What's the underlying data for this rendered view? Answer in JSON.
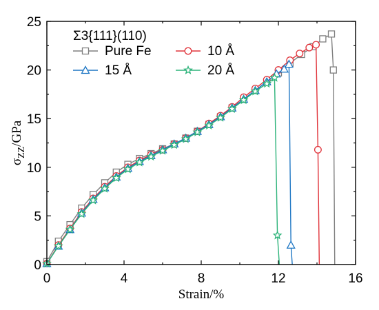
{
  "chart_data": {
    "type": "line",
    "title": "",
    "xlabel": "Strain/%",
    "ylabel_main": "σ",
    "ylabel_sub": "ZZ",
    "ylabel_tail": "/GPa",
    "xlim": [
      0,
      16
    ],
    "ylim": [
      0,
      25
    ],
    "xticks": [
      0,
      4,
      8,
      12,
      16
    ],
    "yticks": [
      0,
      5,
      10,
      15,
      20,
      25
    ],
    "xtick_labels": [
      "0",
      "4",
      "8",
      "12",
      "16"
    ],
    "ytick_labels": [
      "0",
      "5",
      "10",
      "15",
      "20",
      "25"
    ],
    "grid": false,
    "legend": {
      "placement": "top-left",
      "title": "Σ3{111}(110)"
    },
    "series": [
      {
        "name": "Pure Fe",
        "color": "#7f7f7f",
        "marker": "square",
        "x": [
          0,
          0.6,
          1.2,
          1.8,
          2.4,
          3.0,
          3.6,
          4.2,
          4.8,
          5.4,
          6.0,
          6.6,
          7.2,
          7.8,
          8.4,
          9.0,
          9.6,
          10.2,
          10.8,
          11.4,
          12.0,
          12.6,
          13.2,
          13.8,
          14.3,
          14.75,
          14.85,
          14.92
        ],
        "y": [
          0.3,
          2.4,
          4.1,
          5.8,
          7.2,
          8.4,
          9.5,
          10.3,
          10.9,
          11.4,
          11.9,
          12.4,
          13.0,
          13.7,
          14.4,
          15.2,
          16.1,
          17.0,
          17.9,
          18.8,
          19.7,
          20.7,
          21.6,
          22.4,
          23.2,
          23.7,
          20.0,
          0
        ]
      },
      {
        "name": "10 Å",
        "color": "#e0333a",
        "marker": "circle",
        "x": [
          0,
          0.6,
          1.2,
          1.8,
          2.4,
          3.0,
          3.6,
          4.2,
          4.8,
          5.4,
          6.0,
          6.6,
          7.2,
          7.8,
          8.4,
          9.0,
          9.6,
          10.2,
          10.8,
          11.4,
          12.0,
          12.6,
          13.1,
          13.6,
          13.95,
          14.05,
          14.12
        ],
        "y": [
          0.1,
          2.0,
          3.7,
          5.4,
          6.8,
          8.0,
          9.1,
          10.0,
          10.7,
          11.3,
          11.8,
          12.4,
          13.0,
          13.7,
          14.5,
          15.3,
          16.2,
          17.2,
          18.1,
          19.0,
          20.0,
          21.0,
          21.7,
          22.3,
          22.6,
          11.8,
          0
        ]
      },
      {
        "name": "15 Å",
        "color": "#1f77c4",
        "marker": "triangle",
        "x": [
          0,
          0.6,
          1.2,
          1.8,
          2.4,
          3.0,
          3.6,
          4.2,
          4.8,
          5.4,
          6.0,
          6.6,
          7.2,
          7.8,
          8.4,
          9.0,
          9.6,
          10.2,
          10.8,
          11.4,
          11.9,
          12.3,
          12.55,
          12.65,
          12.72
        ],
        "y": [
          0.1,
          1.9,
          3.6,
          5.3,
          6.7,
          7.9,
          9.0,
          9.9,
          10.6,
          11.2,
          11.8,
          12.4,
          13.0,
          13.7,
          14.4,
          15.2,
          16.1,
          17.0,
          17.9,
          18.8,
          19.6,
          20.1,
          20.6,
          2.0,
          0
        ]
      },
      {
        "name": "20 Å",
        "color": "#2db37a",
        "marker": "star",
        "x": [
          0,
          0.6,
          1.2,
          1.8,
          2.4,
          3.0,
          3.6,
          4.2,
          4.8,
          5.4,
          6.0,
          6.6,
          7.2,
          7.8,
          8.4,
          9.0,
          9.6,
          10.2,
          10.8,
          11.4,
          11.8,
          11.95,
          12.05
        ],
        "y": [
          0.1,
          1.9,
          3.6,
          5.2,
          6.6,
          7.8,
          8.9,
          9.8,
          10.5,
          11.1,
          11.7,
          12.3,
          12.9,
          13.6,
          14.3,
          15.1,
          16.0,
          16.9,
          17.8,
          18.6,
          19.2,
          3.0,
          0
        ]
      }
    ]
  }
}
